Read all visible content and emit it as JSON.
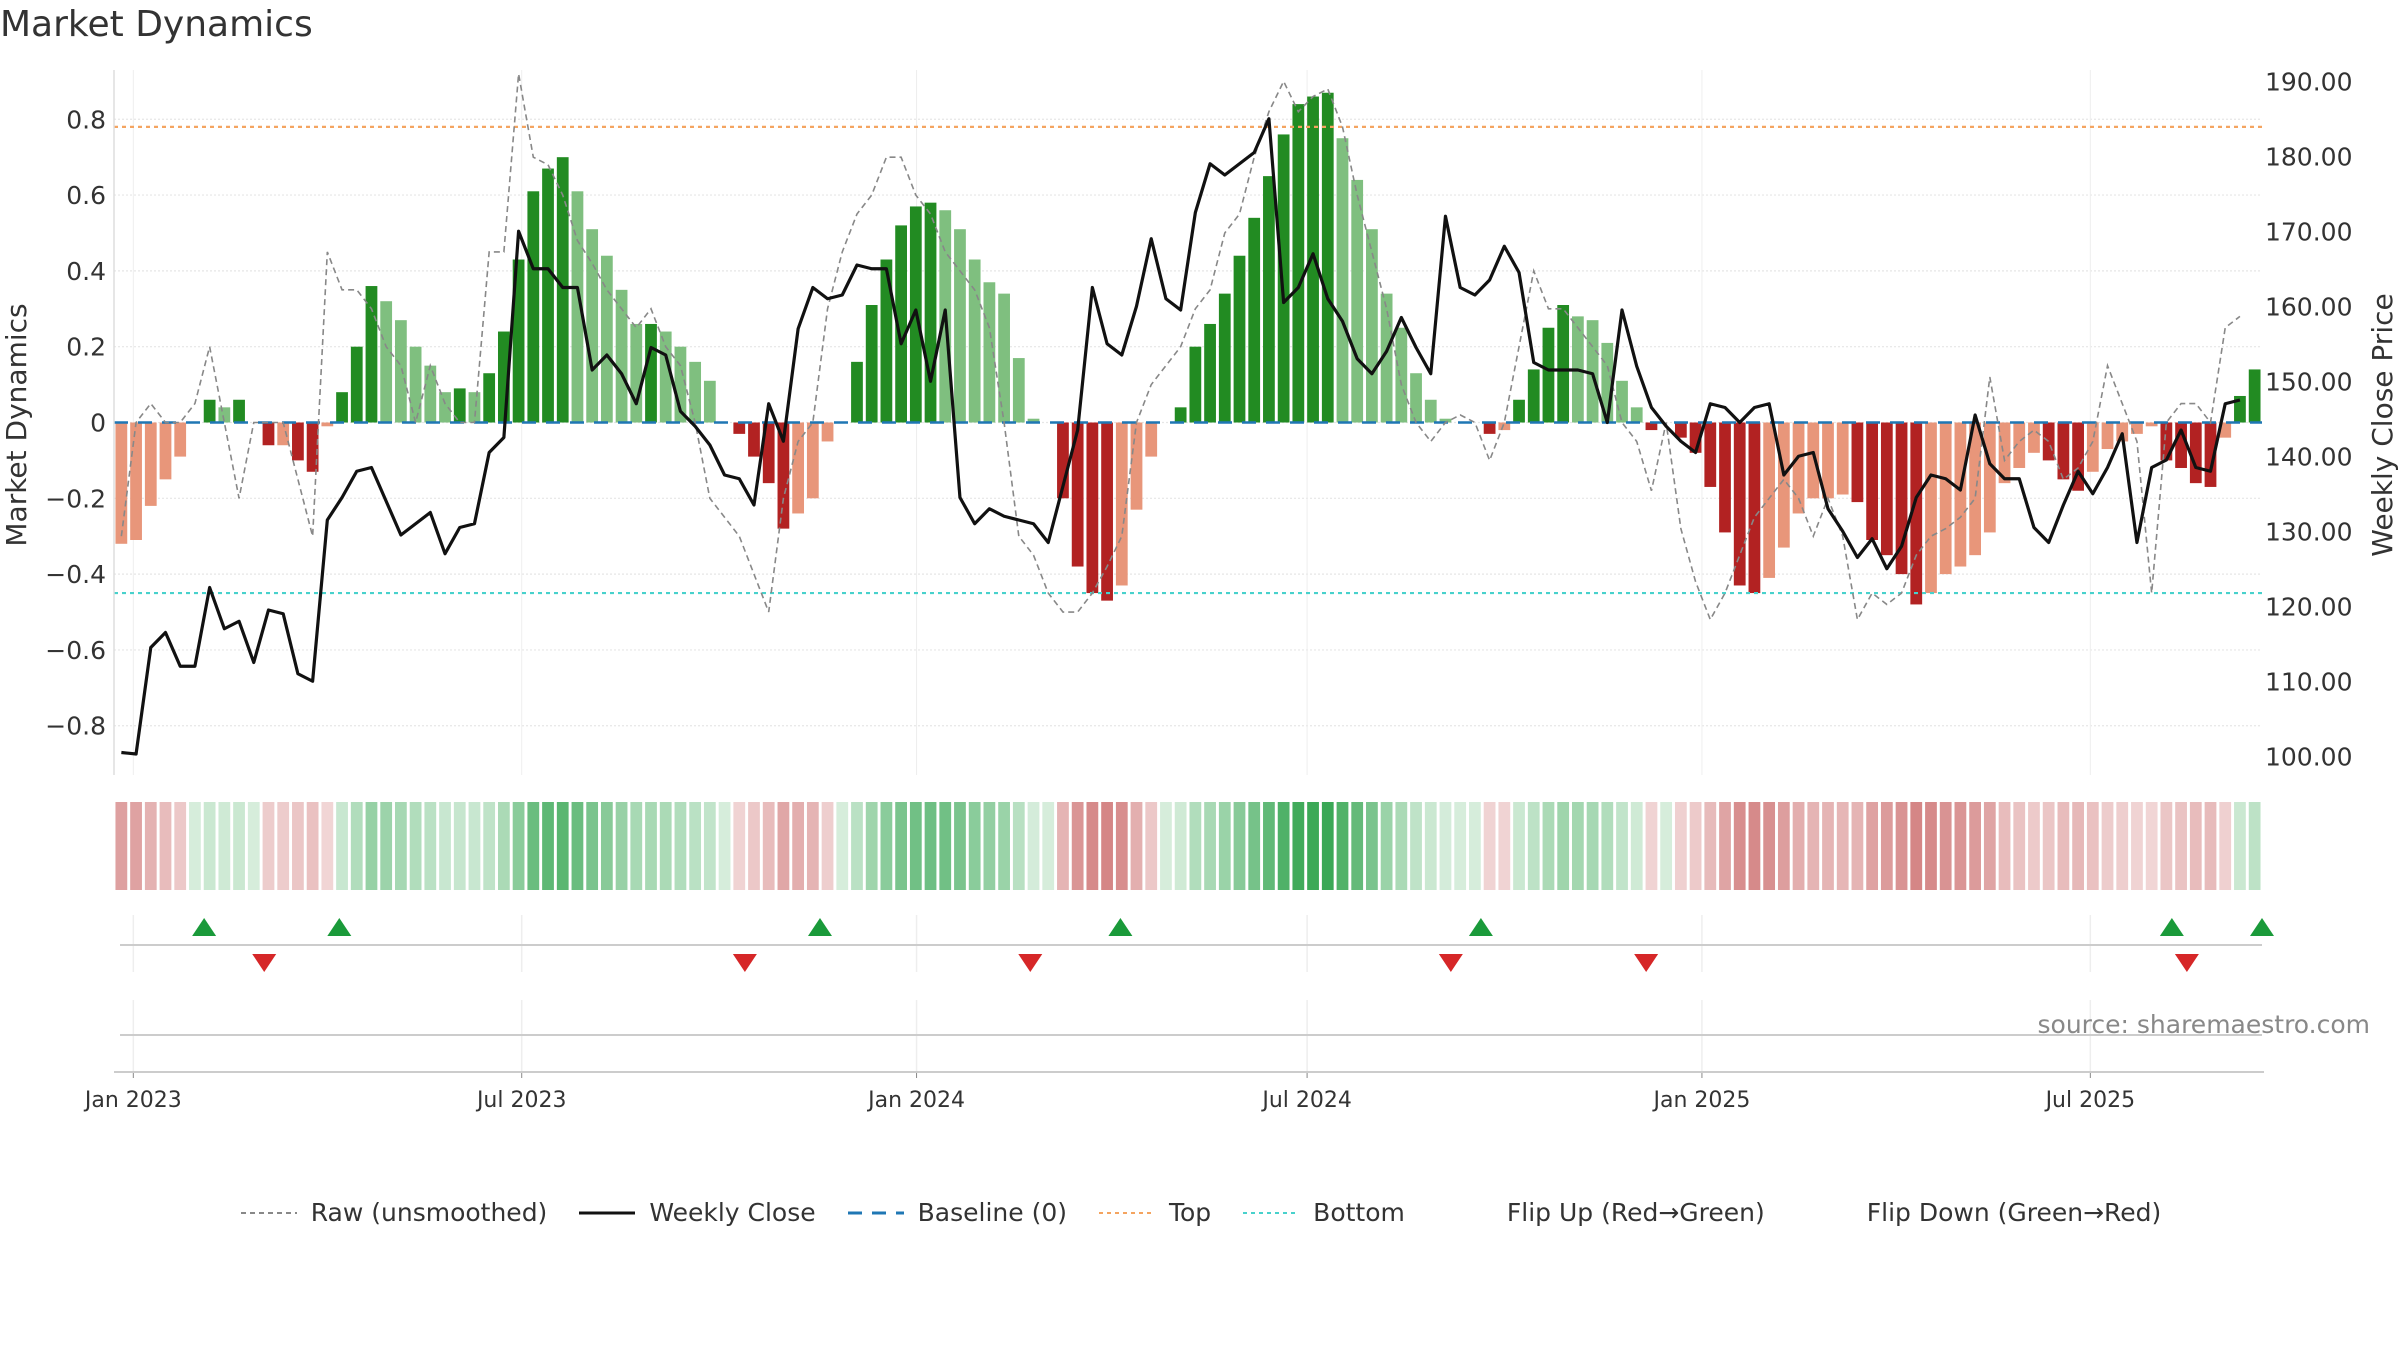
{
  "title": "Market Dynamics",
  "source_text": "source: sharemaestro.com",
  "colors": {
    "dark_green": "#228B22",
    "light_green": "#7fbf7f",
    "dark_red": "#b22222",
    "light_red": "#e8967a",
    "close_line": "#111111",
    "raw_line": "#888888",
    "baseline": "#1f77b4",
    "top_line": "#f4a460",
    "bottom_line": "#48d1cc",
    "flip_up": "#1a9a3a",
    "flip_down": "#d62728"
  },
  "legend": [
    {
      "key": "raw",
      "label": "Raw (unsmoothed)"
    },
    {
      "key": "close",
      "label": "Weekly Close"
    },
    {
      "key": "baseline",
      "label": "Baseline (0)"
    },
    {
      "key": "top",
      "label": "Top"
    },
    {
      "key": "bottom",
      "label": "Bottom"
    },
    {
      "key": "flip_up",
      "label": "Flip Up (Red→Green)"
    },
    {
      "key": "flip_down",
      "label": "Flip Down (Green→Red)"
    }
  ],
  "chart_data": {
    "type": "bar",
    "title": "Market Dynamics",
    "ylabel": "Market Dynamics",
    "y2label": "Weekly Close Price",
    "ylim": [
      -0.93,
      0.93
    ],
    "y2lim": [
      97.5,
      191.5
    ],
    "y_ticks": [
      -0.8,
      -0.6,
      -0.4,
      -0.2,
      0,
      0.2,
      0.4,
      0.6,
      0.8
    ],
    "y_tick_labels": [
      "−0.8",
      "−0.6",
      "−0.4",
      "−0.2",
      "0",
      "0.2",
      "0.4",
      "0.6",
      "0.8"
    ],
    "y2_ticks": [
      100,
      110,
      120,
      130,
      140,
      150,
      160,
      170,
      180,
      190
    ],
    "y2_tick_labels": [
      "100.00",
      "110.00",
      "120.00",
      "130.00",
      "140.00",
      "150.00",
      "160.00",
      "170.00",
      "180.00",
      "190.00"
    ],
    "x_start": "2022-12-23",
    "x_end": "2025-09-19",
    "x_ticks": [
      "2023-01-01",
      "2023-07-01",
      "2024-01-01",
      "2024-07-01",
      "2025-01-01",
      "2025-07-01"
    ],
    "x_tick_labels": [
      "Jan 2023",
      "Jul 2023",
      "Jan 2024",
      "Jul 2024",
      "Jan 2025",
      "Jul 2025"
    ],
    "top_threshold": 0.78,
    "bottom_threshold": -0.45,
    "baseline": 0,
    "grid": true,
    "legend_position": "bottom",
    "series": [
      {
        "name": "Market Dynamics",
        "values": [
          -0.32,
          -0.31,
          -0.22,
          -0.15,
          -0.09,
          0.0,
          0.06,
          0.04,
          0.06,
          0.0,
          -0.06,
          -0.06,
          -0.1,
          -0.13,
          -0.01,
          0.08,
          0.2,
          0.36,
          0.32,
          0.27,
          0.2,
          0.15,
          0.08,
          0.09,
          0.08,
          0.13,
          0.24,
          0.43,
          0.61,
          0.67,
          0.7,
          0.61,
          0.51,
          0.44,
          0.35,
          0.26,
          0.26,
          0.24,
          0.2,
          0.16,
          0.11,
          0.0,
          -0.03,
          -0.09,
          -0.16,
          -0.28,
          -0.24,
          -0.2,
          -0.05,
          0.0,
          0.16,
          0.31,
          0.43,
          0.52,
          0.57,
          0.58,
          0.56,
          0.51,
          0.43,
          0.37,
          0.34,
          0.17,
          0.01,
          0.0,
          -0.2,
          -0.38,
          -0.45,
          -0.47,
          -0.43,
          -0.23,
          -0.09,
          0.0,
          0.04,
          0.2,
          0.26,
          0.34,
          0.44,
          0.54,
          0.65,
          0.76,
          0.84,
          0.86,
          0.87,
          0.75,
          0.64,
          0.51,
          0.34,
          0.25,
          0.13,
          0.06,
          0.01,
          0.0,
          0.0,
          -0.03,
          -0.02,
          0.06,
          0.14,
          0.25,
          0.31,
          0.28,
          0.27,
          0.21,
          0.11,
          0.04,
          -0.02,
          0.0,
          -0.04,
          -0.08,
          -0.17,
          -0.29,
          -0.43,
          -0.45,
          -0.41,
          -0.33,
          -0.24,
          -0.2,
          -0.2,
          -0.19,
          -0.21,
          -0.31,
          -0.35,
          -0.4,
          -0.48,
          -0.45,
          -0.4,
          -0.38,
          -0.35,
          -0.29,
          -0.16,
          -0.12,
          -0.08,
          -0.1,
          -0.15,
          -0.18,
          -0.13,
          -0.07,
          -0.05,
          -0.03,
          -0.01,
          -0.1,
          -0.12,
          -0.16,
          -0.17,
          -0.04,
          0.07,
          0.14
        ]
      },
      {
        "name": "Raw (unsmoothed)",
        "values": [
          -0.3,
          0.0,
          0.05,
          0.0,
          0.0,
          0.05,
          0.2,
          0.0,
          -0.2,
          0.0,
          0.0,
          0.0,
          -0.15,
          -0.3,
          0.45,
          0.35,
          0.35,
          0.3,
          0.2,
          0.15,
          0.0,
          0.15,
          0.05,
          0.0,
          0.0,
          0.45,
          0.45,
          0.92,
          0.7,
          0.68,
          0.6,
          0.48,
          0.42,
          0.35,
          0.3,
          0.25,
          0.3,
          0.2,
          0.15,
          0.0,
          -0.2,
          -0.25,
          -0.3,
          -0.4,
          -0.5,
          -0.2,
          -0.05,
          0.0,
          0.3,
          0.45,
          0.55,
          0.6,
          0.7,
          0.7,
          0.6,
          0.55,
          0.45,
          0.4,
          0.35,
          0.25,
          0.0,
          -0.3,
          -0.35,
          -0.45,
          -0.5,
          -0.5,
          -0.45,
          -0.38,
          -0.3,
          0.0,
          0.1,
          0.15,
          0.2,
          0.3,
          0.35,
          0.5,
          0.55,
          0.7,
          0.82,
          0.9,
          0.82,
          0.86,
          0.88,
          0.78,
          0.6,
          0.45,
          0.3,
          0.1,
          0.0,
          -0.05,
          0.0,
          0.02,
          0.0,
          -0.1,
          0.0,
          0.2,
          0.4,
          0.3,
          0.3,
          0.25,
          0.2,
          0.15,
          0.0,
          -0.05,
          -0.18,
          0.0,
          -0.28,
          -0.42,
          -0.52,
          -0.45,
          -0.35,
          -0.25,
          -0.2,
          -0.15,
          -0.2,
          -0.3,
          -0.2,
          -0.3,
          -0.52,
          -0.45,
          -0.48,
          -0.45,
          -0.35,
          -0.3,
          -0.28,
          -0.25,
          -0.2,
          0.12,
          -0.1,
          -0.05,
          -0.02,
          -0.05,
          -0.15,
          -0.12,
          -0.05,
          0.15,
          0.05,
          -0.05,
          -0.45,
          0.0,
          0.05,
          0.05,
          0.0,
          0.25,
          0.28
        ]
      },
      {
        "name": "Weekly Close",
        "values": [
          100.5,
          100.3,
          114.5,
          116.5,
          112.0,
          112.0,
          122.5,
          117.0,
          118.0,
          112.5,
          119.5,
          119.0,
          111.0,
          110.0,
          131.5,
          134.5,
          138.0,
          138.5,
          134.0,
          129.5,
          131.0,
          132.5,
          127.0,
          130.5,
          131.0,
          140.5,
          142.5,
          170.0,
          165.0,
          165.0,
          162.5,
          162.5,
          151.5,
          153.5,
          151.0,
          147.0,
          154.5,
          153.5,
          146.0,
          144.0,
          141.5,
          137.5,
          137.0,
          133.5,
          147.0,
          142.0,
          157.0,
          162.5,
          161.0,
          161.5,
          165.5,
          165.0,
          165.0,
          155.0,
          159.5,
          150.0,
          159.5,
          134.5,
          131.0,
          133.0,
          132.0,
          131.5,
          131.0,
          128.5,
          136.0,
          143.5,
          162.5,
          155.0,
          153.5,
          160.0,
          169.0,
          161.0,
          159.5,
          172.5,
          179.0,
          177.5,
          179.0,
          180.5,
          185.0,
          160.5,
          162.5,
          167.0,
          161.0,
          158.0,
          153.0,
          151.0,
          154.0,
          158.5,
          154.5,
          151.0,
          172.0,
          162.5,
          161.5,
          163.5,
          168.0,
          164.5,
          152.5,
          151.5,
          151.5,
          151.5,
          151.0,
          144.5,
          159.5,
          152.0,
          146.5,
          144.0,
          142.0,
          140.5,
          147.0,
          146.5,
          144.5,
          146.5,
          147.0,
          137.5,
          140.0,
          140.5,
          133.0,
          130.0,
          126.5,
          129.0,
          125.0,
          128.0,
          134.5,
          137.5,
          137.0,
          135.5,
          145.5,
          139.0,
          137.0,
          137.0,
          130.5,
          128.5,
          133.5,
          138.0,
          135.0,
          138.5,
          143.0,
          128.5,
          138.5,
          139.5,
          143.5,
          138.5,
          138.0,
          147.0,
          147.5
        ]
      },
      {
        "name": "Flip Up (Red→Green)",
        "x": [
          "2023-02-03",
          "2023-04-07",
          "2023-11-17",
          "2024-04-05",
          "2024-09-20",
          "2025-08-08",
          "2025-09-19"
        ]
      },
      {
        "name": "Flip Down (Green→Red)",
        "x": [
          "2023-03-03",
          "2023-10-13",
          "2024-02-23",
          "2024-09-06",
          "2024-12-06",
          "2025-08-15"
        ]
      }
    ]
  }
}
